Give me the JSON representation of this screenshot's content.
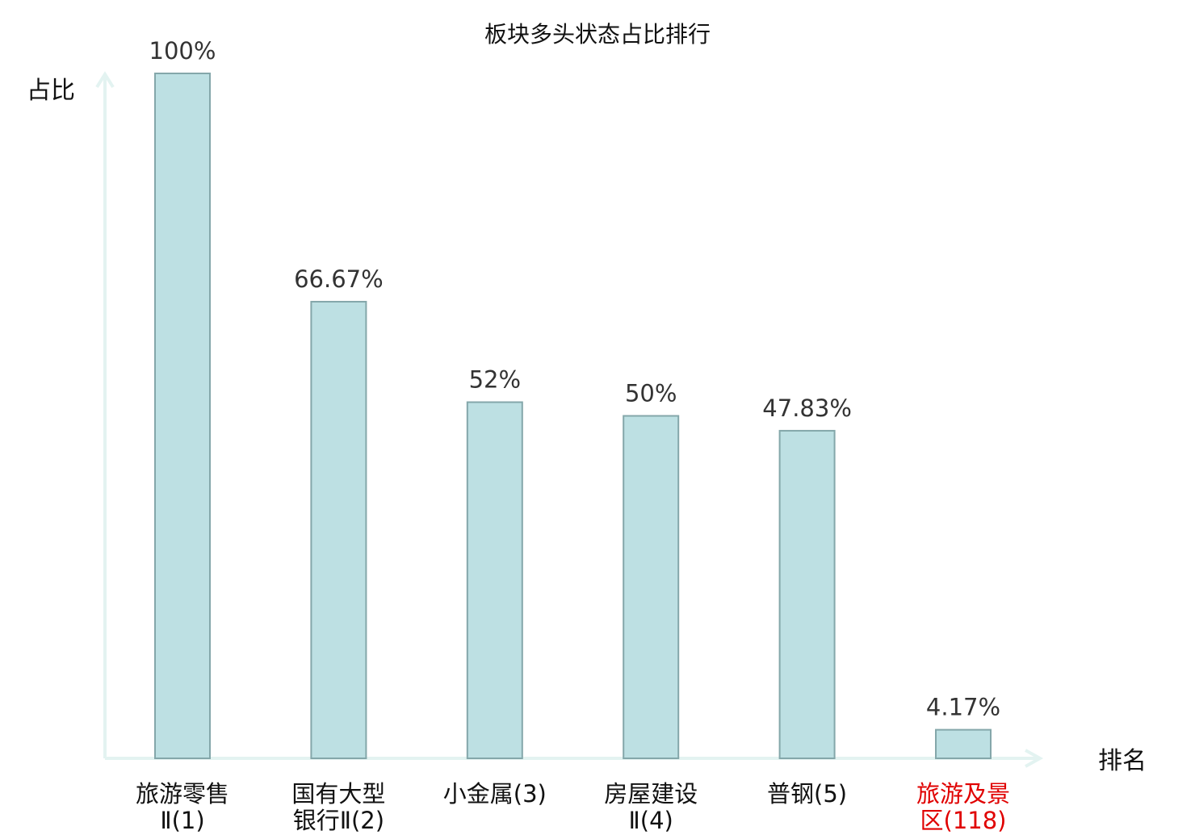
{
  "chart_data": {
    "type": "bar",
    "title": "板块多头状态占比排行",
    "ylabel": "占比",
    "xlabel": "排名",
    "ylim": [
      0,
      100
    ],
    "grid": false,
    "legend": "none",
    "categories": [
      [
        "旅游零售",
        "Ⅱ(1)"
      ],
      [
        "国有大型",
        "银行Ⅱ(2)"
      ],
      [
        "小金属(3)"
      ],
      [
        "房屋建设",
        "Ⅱ(4)"
      ],
      [
        "普钢(5)"
      ],
      [
        "旅游及景",
        "区(118)"
      ]
    ],
    "values": [
      100,
      66.67,
      52,
      50,
      47.83,
      4.17
    ],
    "value_labels": [
      "100%",
      "66.67%",
      "52%",
      "50%",
      "47.83%",
      "4.17%"
    ],
    "highlight_index": 5,
    "colors": {
      "bar_fill": "#bde0e3",
      "bar_stroke": "#84a7aa",
      "axis": "#e3f3f1",
      "highlight_text": "#e00000",
      "text": "#111111"
    }
  }
}
